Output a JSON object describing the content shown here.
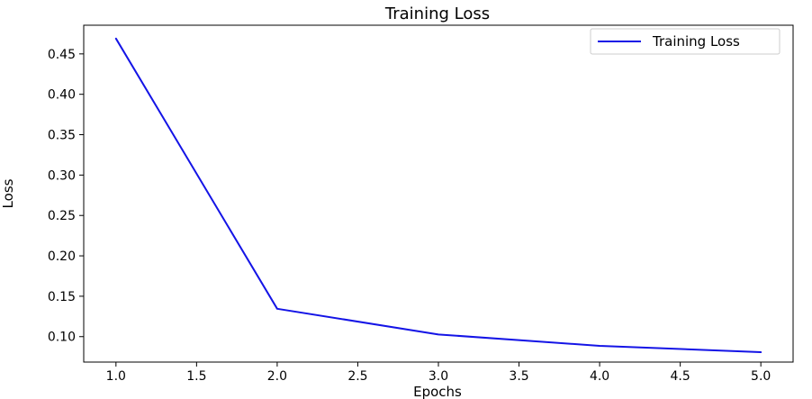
{
  "chart_data": {
    "type": "line",
    "title": "Training Loss",
    "xlabel": "Epochs",
    "ylabel": "Loss",
    "x": [
      1,
      2,
      3,
      4,
      5
    ],
    "xlim": [
      0.8,
      5.2
    ],
    "ylim": [
      0.0685,
      0.4855
    ],
    "x_ticks": [
      1.0,
      1.5,
      2.0,
      2.5,
      3.0,
      3.5,
      4.0,
      4.5,
      5.0
    ],
    "x_tick_labels": [
      "1.0",
      "1.5",
      "2.0",
      "2.5",
      "3.0",
      "3.5",
      "4.0",
      "4.5",
      "5.0"
    ],
    "y_ticks": [
      0.1,
      0.15,
      0.2,
      0.25,
      0.3,
      0.35,
      0.4,
      0.45
    ],
    "y_tick_labels": [
      "0.10",
      "0.15",
      "0.20",
      "0.25",
      "0.30",
      "0.35",
      "0.40",
      "0.45"
    ],
    "series": [
      {
        "name": "Training Loss",
        "values": [
          0.469,
          0.1345,
          0.1027,
          0.0886,
          0.0807
        ],
        "color": "#1414e6"
      }
    ],
    "legend": {
      "position": "top-right"
    },
    "grid": false
  }
}
